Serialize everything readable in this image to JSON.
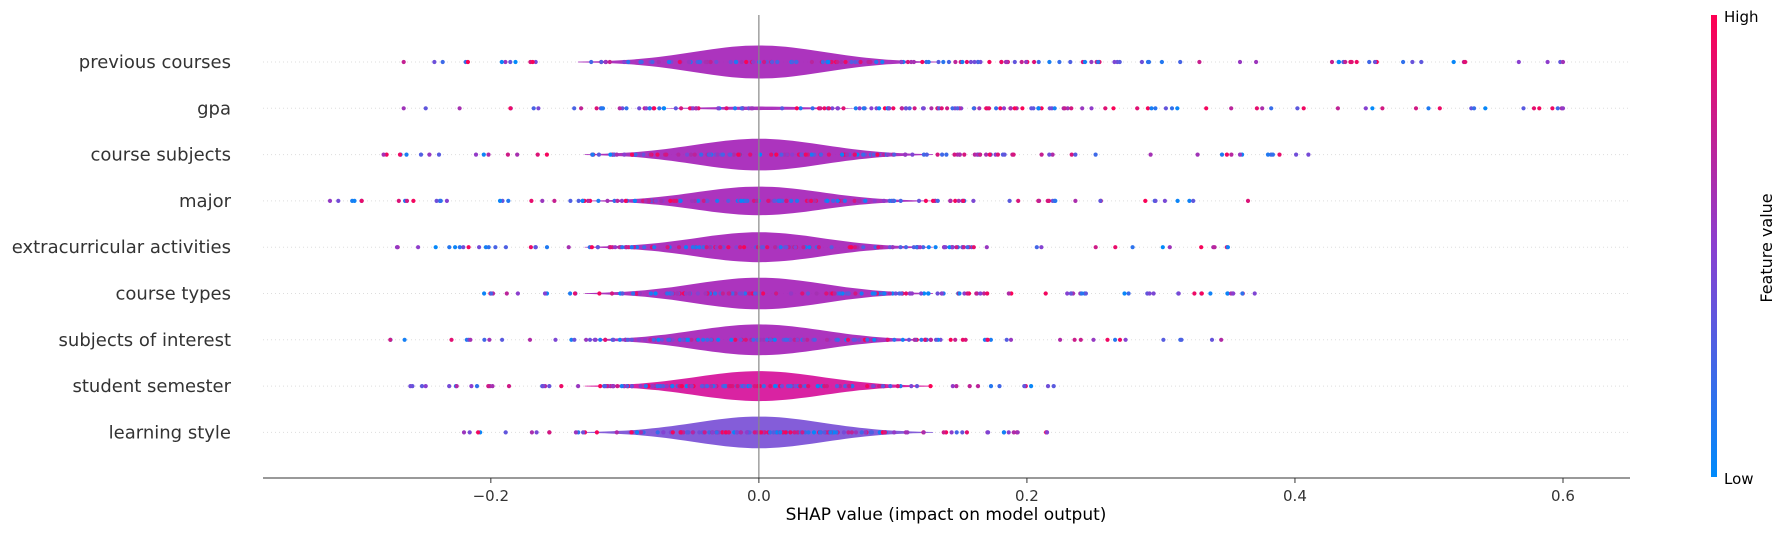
{
  "chart_data": {
    "type": "violin",
    "xlabel": "SHAP value (impact on model output)",
    "xlim": [
      -0.37,
      0.65
    ],
    "xticks": [
      -0.2,
      0.0,
      0.2,
      0.4,
      0.6
    ],
    "xtick_labels": [
      "−0.2",
      "0.0",
      "0.2",
      "0.4",
      "0.6"
    ],
    "zero_line": 0.0,
    "grid": "dotted horizontal rows",
    "colors": {
      "low": "#008bfb",
      "mid": "#8a3fd0",
      "high": "#ff0052"
    },
    "colorbar": {
      "title": "Feature value",
      "high_label": "High",
      "low_label": "Low"
    },
    "features": [
      {
        "name": "previous courses",
        "range": [
          -0.265,
          0.6
        ],
        "width": 0.75
      },
      {
        "name": "gpa",
        "range": [
          -0.265,
          0.6
        ],
        "width": 0.08
      },
      {
        "name": "course subjects",
        "range": [
          -0.28,
          0.41
        ],
        "width": 0.72
      },
      {
        "name": "major",
        "range": [
          -0.32,
          0.365
        ],
        "width": 0.65
      },
      {
        "name": "extracurricular activities",
        "range": [
          -0.27,
          0.35
        ],
        "width": 0.68
      },
      {
        "name": "course types",
        "range": [
          -0.205,
          0.37
        ],
        "width": 0.72
      },
      {
        "name": "subjects of interest",
        "range": [
          -0.275,
          0.345
        ],
        "width": 0.7
      },
      {
        "name": "student semester",
        "range": [
          -0.26,
          0.22
        ],
        "width": 0.68
      },
      {
        "name": "learning style",
        "range": [
          -0.22,
          0.215
        ],
        "width": 0.72
      }
    ]
  }
}
